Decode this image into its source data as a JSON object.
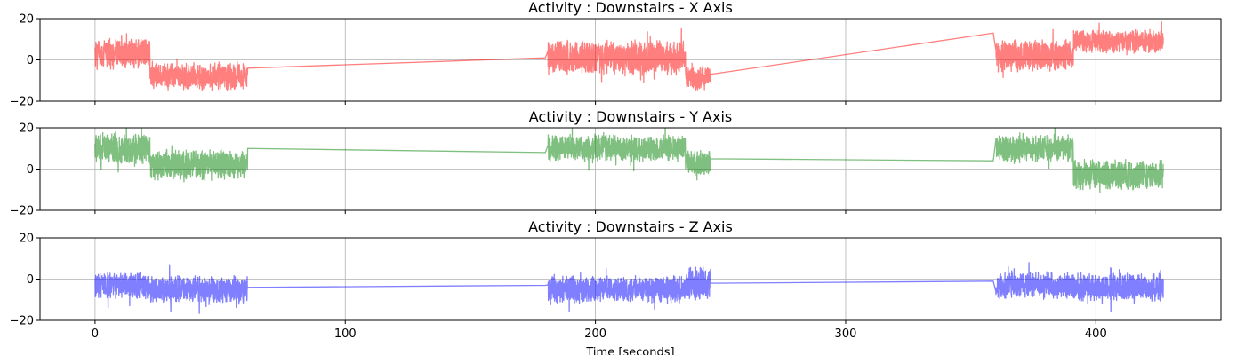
{
  "chart_data": [
    {
      "type": "line",
      "title": "Activity : Downstairs - X Axis",
      "xlabel": "",
      "ylabel": "",
      "xlim": [
        -22,
        450
      ],
      "ylim": [
        -20,
        20
      ],
      "yticks": [
        -20,
        0,
        20
      ],
      "xticks": [
        0,
        100,
        200,
        300,
        400
      ],
      "grid": true,
      "series": [
        {
          "color": "#ff0000",
          "segments": [
            {
              "x_start": 0,
              "x_end": 22,
              "mean": 3,
              "amplitude": 8
            },
            {
              "x_start": 22,
              "x_end": 61,
              "mean": -8,
              "amplitude": 7
            },
            {
              "x_start": 181,
              "x_end": 236,
              "mean": 1,
              "amplitude": 9
            },
            {
              "x_start": 236,
              "x_end": 246,
              "mean": -9,
              "amplitude": 6
            },
            {
              "x_start": 360,
              "x_end": 391,
              "mean": 2,
              "amplitude": 8
            },
            {
              "x_start": 391,
              "x_end": 427,
              "mean": 9,
              "amplitude": 6
            }
          ],
          "connectors": [
            {
              "x": [
                61,
                180
              ],
              "y": [
                -4,
                1
              ]
            },
            {
              "x": [
                246,
                359
              ],
              "y": [
                -7,
                13
              ]
            }
          ]
        }
      ]
    },
    {
      "type": "line",
      "title": "Activity : Downstairs - Y Axis",
      "xlabel": "",
      "ylabel": "",
      "xlim": [
        -22,
        450
      ],
      "ylim": [
        -20,
        20
      ],
      "yticks": [
        -20,
        0,
        20
      ],
      "xticks": [
        0,
        100,
        200,
        300,
        400
      ],
      "grid": true,
      "series": [
        {
          "color": "#008000",
          "segments": [
            {
              "x_start": 0,
              "x_end": 22,
              "mean": 10,
              "amplitude": 8
            },
            {
              "x_start": 22,
              "x_end": 61,
              "mean": 2,
              "amplitude": 8
            },
            {
              "x_start": 181,
              "x_end": 236,
              "mean": 10,
              "amplitude": 7
            },
            {
              "x_start": 236,
              "x_end": 246,
              "mean": 3,
              "amplitude": 7
            },
            {
              "x_start": 360,
              "x_end": 391,
              "mean": 10,
              "amplitude": 7
            },
            {
              "x_start": 391,
              "x_end": 427,
              "mean": -3,
              "amplitude": 8
            }
          ],
          "connectors": [
            {
              "x": [
                61,
                180
              ],
              "y": [
                10,
                8
              ]
            },
            {
              "x": [
                246,
                359
              ],
              "y": [
                5,
                4
              ]
            }
          ]
        }
      ]
    },
    {
      "type": "line",
      "title": "Activity : Downstairs - Z Axis",
      "xlabel": "Time [seconds]",
      "ylabel": "",
      "xlim": [
        -22,
        450
      ],
      "ylim": [
        -20,
        20
      ],
      "yticks": [
        -20,
        0,
        20
      ],
      "xticks": [
        0,
        100,
        200,
        300,
        400
      ],
      "grid": true,
      "series": [
        {
          "color": "#0000ff",
          "segments": [
            {
              "x_start": 0,
              "x_end": 22,
              "mean": -3,
              "amplitude": 7
            },
            {
              "x_start": 22,
              "x_end": 61,
              "mean": -5,
              "amplitude": 7
            },
            {
              "x_start": 181,
              "x_end": 236,
              "mean": -5,
              "amplitude": 7
            },
            {
              "x_start": 236,
              "x_end": 246,
              "mean": -2,
              "amplitude": 9
            },
            {
              "x_start": 360,
              "x_end": 391,
              "mean": -3,
              "amplitude": 7
            },
            {
              "x_start": 391,
              "x_end": 427,
              "mean": -4,
              "amplitude": 7
            }
          ],
          "connectors": [
            {
              "x": [
                61,
                180
              ],
              "y": [
                -4,
                -3
              ]
            },
            {
              "x": [
                246,
                359
              ],
              "y": [
                -2,
                -1
              ]
            }
          ]
        }
      ]
    }
  ]
}
